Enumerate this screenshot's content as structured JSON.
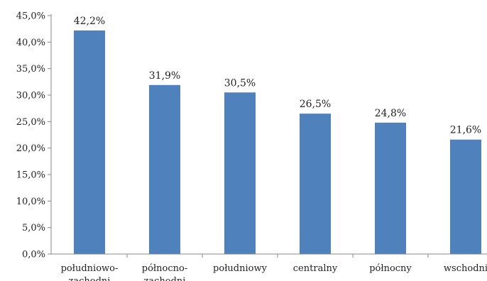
{
  "chart_data": {
    "type": "bar",
    "categories": [
      "południowo-zachodni",
      "północno-zachodni",
      "południowy",
      "centralny",
      "północny",
      "wschodni"
    ],
    "values": [
      42.2,
      31.9,
      30.5,
      26.5,
      24.8,
      21.6
    ],
    "data_labels": [
      "42,2%",
      "31,9%",
      "30,5%",
      "26,5%",
      "24,8%",
      "21,6%"
    ],
    "y_tick_labels": [
      "0,0%",
      "5,0%",
      "10,0%",
      "15,0%",
      "20,0%",
      "25,0%",
      "30,0%",
      "35,0%",
      "40,0%",
      "45,0%"
    ],
    "y_ticks": [
      0,
      5,
      10,
      15,
      20,
      25,
      30,
      35,
      40,
      45
    ],
    "ylim": [
      0,
      45
    ],
    "title": "",
    "xlabel": "",
    "ylabel": "",
    "grid": false,
    "legend": "none",
    "colors": {
      "bar": "#4f81bd",
      "axis": "#888888",
      "text": "#222222"
    }
  }
}
